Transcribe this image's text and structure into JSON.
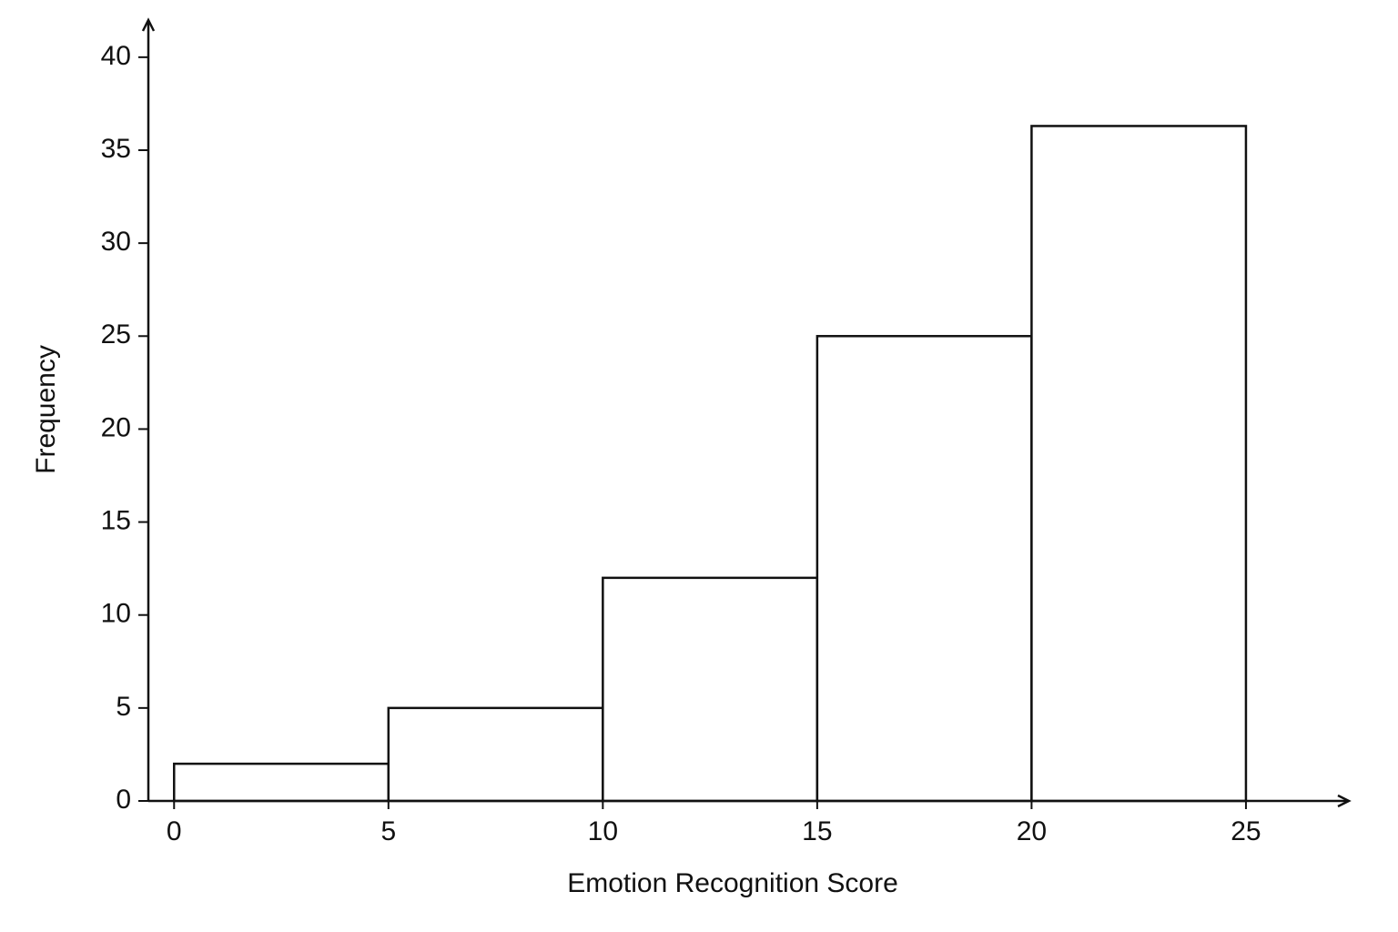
{
  "chart_data": {
    "type": "histogram",
    "x_label": "Emotion Recognition Score",
    "y_label": "Frequency",
    "bins": [
      0,
      5,
      10,
      15,
      20,
      25
    ],
    "values": [
      2,
      5,
      12,
      25,
      36.3
    ],
    "color": "#ffffff",
    "edgecolor": "#111111",
    "xlim": [
      -0.6,
      27.4
    ],
    "ylim": [
      0,
      42
    ],
    "xticks": [
      0,
      5,
      10,
      15,
      20,
      25
    ],
    "yticks": [
      0,
      5,
      10,
      15,
      20,
      25,
      30,
      35,
      40
    ],
    "grid": false
  }
}
